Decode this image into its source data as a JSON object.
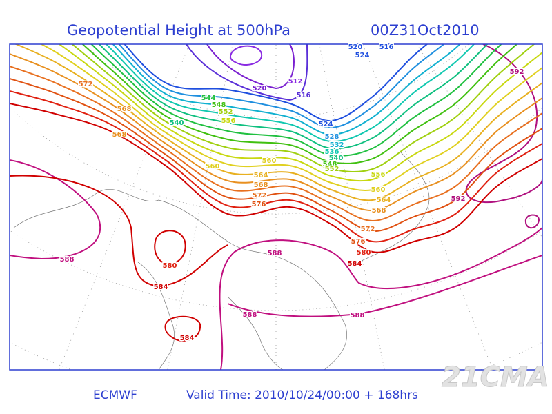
{
  "header": {
    "title": "Geopotential Height at 500hPa",
    "time": "00Z31Oct2010"
  },
  "map": {
    "contour_labels": [
      "520",
      "516",
      "524",
      "520",
      "512",
      "516",
      "524",
      "528",
      "532",
      "536",
      "540",
      "548",
      "552",
      "544",
      "548",
      "552",
      "556",
      "540",
      "572",
      "568",
      "568",
      "560",
      "560",
      "564",
      "568",
      "572",
      "576",
      "556",
      "560",
      "564",
      "568",
      "572",
      "576",
      "580",
      "584",
      "592",
      "592",
      "588",
      "580",
      "584",
      "588",
      "588",
      "588",
      "584"
    ]
  },
  "footer": {
    "source": "ECMWF",
    "valid_time": "Valid Time: 2010/10/24/00:00 + 168hrs"
  },
  "watermark": "21CMA"
}
